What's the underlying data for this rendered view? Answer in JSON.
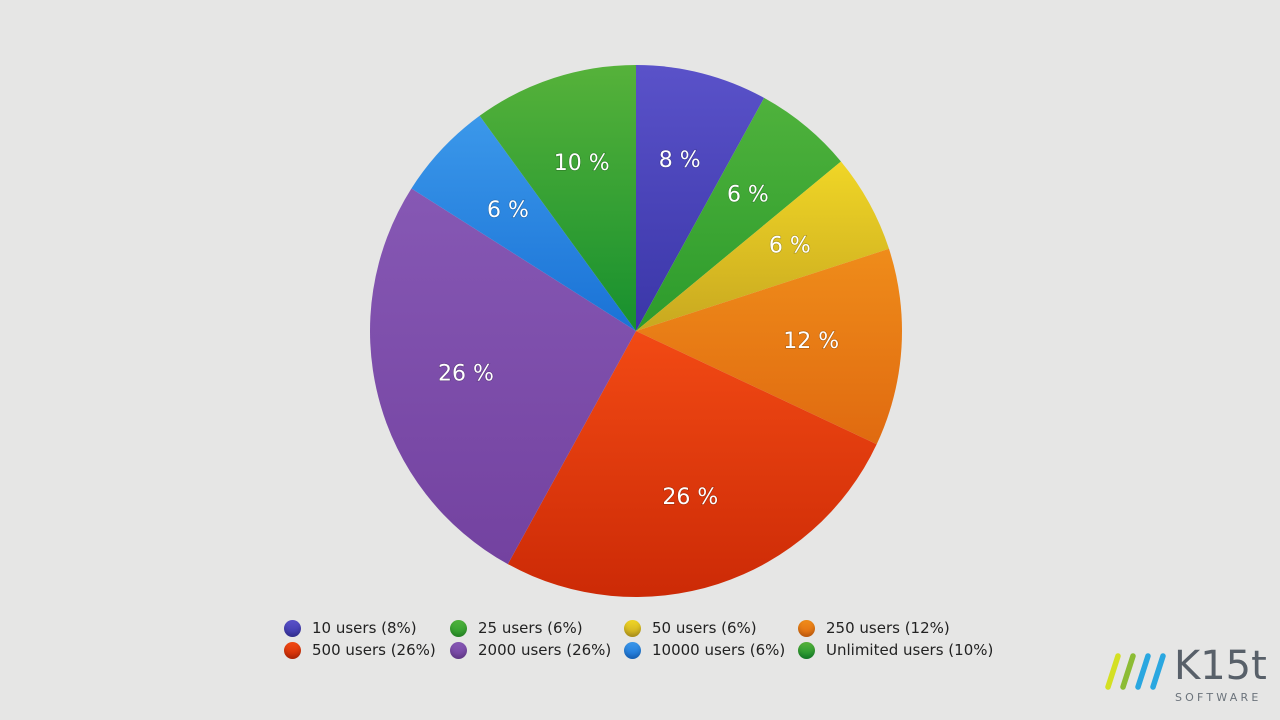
{
  "chart_data": {
    "type": "pie",
    "start_angle_deg": 0,
    "direction": "clockwise",
    "slices": [
      {
        "label": "8 %",
        "legend": "10 users (8%)",
        "value": 8,
        "color": "#5a52c9",
        "color_dark": "#3a36a8"
      },
      {
        "label": "6 %",
        "legend": "25 users (6%)",
        "value": 6,
        "color": "#4fb23c",
        "color_dark": "#2c9b2c"
      },
      {
        "label": "6 %",
        "legend": "50 users (6%)",
        "value": 6,
        "color": "#f0d626",
        "color_dark": "#c8a820"
      },
      {
        "label": "12 %",
        "legend": "250 users (12%)",
        "value": 12,
        "color": "#ef8c1a",
        "color_dark": "#e06a10"
      },
      {
        "label": "26 %",
        "legend": "500 users (26%)",
        "value": 26,
        "color": "#f24a14",
        "color_dark": "#cc2a06"
      },
      {
        "label": "26 %",
        "legend": "2000 users (26%)",
        "value": 26,
        "color": "#8658b4",
        "color_dark": "#7342a0"
      },
      {
        "label": "6 %",
        "legend": "10000 users (6%)",
        "value": 6,
        "color": "#3b98ea",
        "color_dark": "#1a72d6"
      },
      {
        "label": "10 %",
        "legend": "Unlimited users (10%)",
        "value": 10,
        "color": "#56b23a",
        "color_dark": "#17902e"
      }
    ]
  },
  "logo": {
    "name": "K15t",
    "sub": "SOFTWARE",
    "stripe_colors": [
      "#d4e023",
      "#8cbc34",
      "#2aa7e0",
      "#2aa7e0"
    ]
  }
}
